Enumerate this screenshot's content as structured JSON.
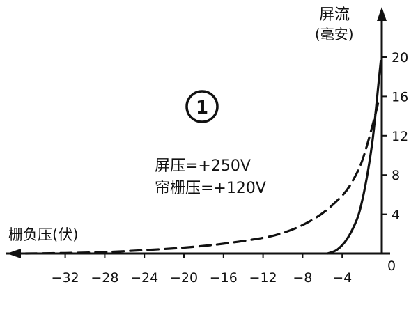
{
  "chart_data": {
    "type": "line",
    "title": "",
    "ylabel_line1": "屏流",
    "ylabel_line2": "(毫安)",
    "xlabel": "栅负压(伏)",
    "badge": "1",
    "annotations": [
      "屏压=+250V",
      "帘栅压=+120V"
    ],
    "x_ticks": [
      -32,
      -28,
      -24,
      -20,
      -16,
      -12,
      -8,
      -4
    ],
    "x_tick_labels": [
      "−32",
      "−28",
      "−24",
      "−20",
      "−16",
      "−12",
      "−8",
      "−4"
    ],
    "y_ticks": [
      4,
      8,
      12,
      16,
      20
    ],
    "y_tick_labels": [
      "4",
      "8",
      "12",
      "16",
      "20"
    ],
    "origin_label": "0",
    "xlim": [
      -37,
      0
    ],
    "ylim": [
      0,
      20
    ],
    "series": [
      {
        "style": "solid",
        "x": [
          -5.5,
          -4.5,
          -3.5,
          -2.5,
          -2.0,
          -1.5,
          -1.0,
          -0.7,
          -0.4,
          -0.1
        ],
        "y": [
          0,
          0.4,
          1.5,
          3.5,
          5.3,
          7.8,
          11.0,
          13.6,
          16.6,
          19.6
        ]
      },
      {
        "style": "dashed",
        "x": [
          -36,
          -32,
          -28,
          -24,
          -20,
          -16,
          -12,
          -10,
          -8,
          -6,
          -4,
          -3,
          -2,
          -1,
          -0.3
        ],
        "y": [
          0,
          0.05,
          0.15,
          0.35,
          0.6,
          1.0,
          1.6,
          2.1,
          2.9,
          4.1,
          5.9,
          7.3,
          9.4,
          12.8,
          15.6
        ]
      }
    ]
  }
}
